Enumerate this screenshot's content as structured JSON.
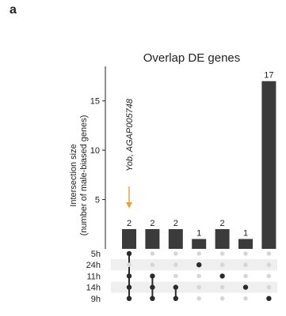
{
  "panel_label": "a",
  "chart_data": {
    "type": "bar",
    "subtype": "upset",
    "title": "Overlap DE genes",
    "ylabel_line1": "Intersection size",
    "ylabel_line2": "(number of male-biased genes)",
    "yticks": [
      5,
      10,
      15
    ],
    "ylim": [
      0,
      18.5
    ],
    "values": [
      2,
      2,
      2,
      1,
      2,
      1,
      17
    ],
    "value_labels": [
      "2",
      "2",
      "2",
      "1",
      "2",
      "1",
      "17"
    ],
    "sets": [
      "5h",
      "24h",
      "11h",
      "14h",
      "9h"
    ],
    "intersections": [
      [
        "5h",
        "11h",
        "14h",
        "9h"
      ],
      [
        "11h",
        "14h",
        "9h"
      ],
      [
        "14h",
        "9h"
      ],
      [
        "24h"
      ],
      [
        "11h"
      ],
      [
        "14h"
      ],
      [
        "9h"
      ]
    ],
    "annotation": {
      "text": "Yob, AGAP005748",
      "column": 0,
      "color": "#e8a33a"
    },
    "colors": {
      "bar": "#3b3b3b",
      "dot_active": "#2b2b2b",
      "dot_inactive": "#d6d6d6",
      "stripe": "#efefef"
    }
  }
}
